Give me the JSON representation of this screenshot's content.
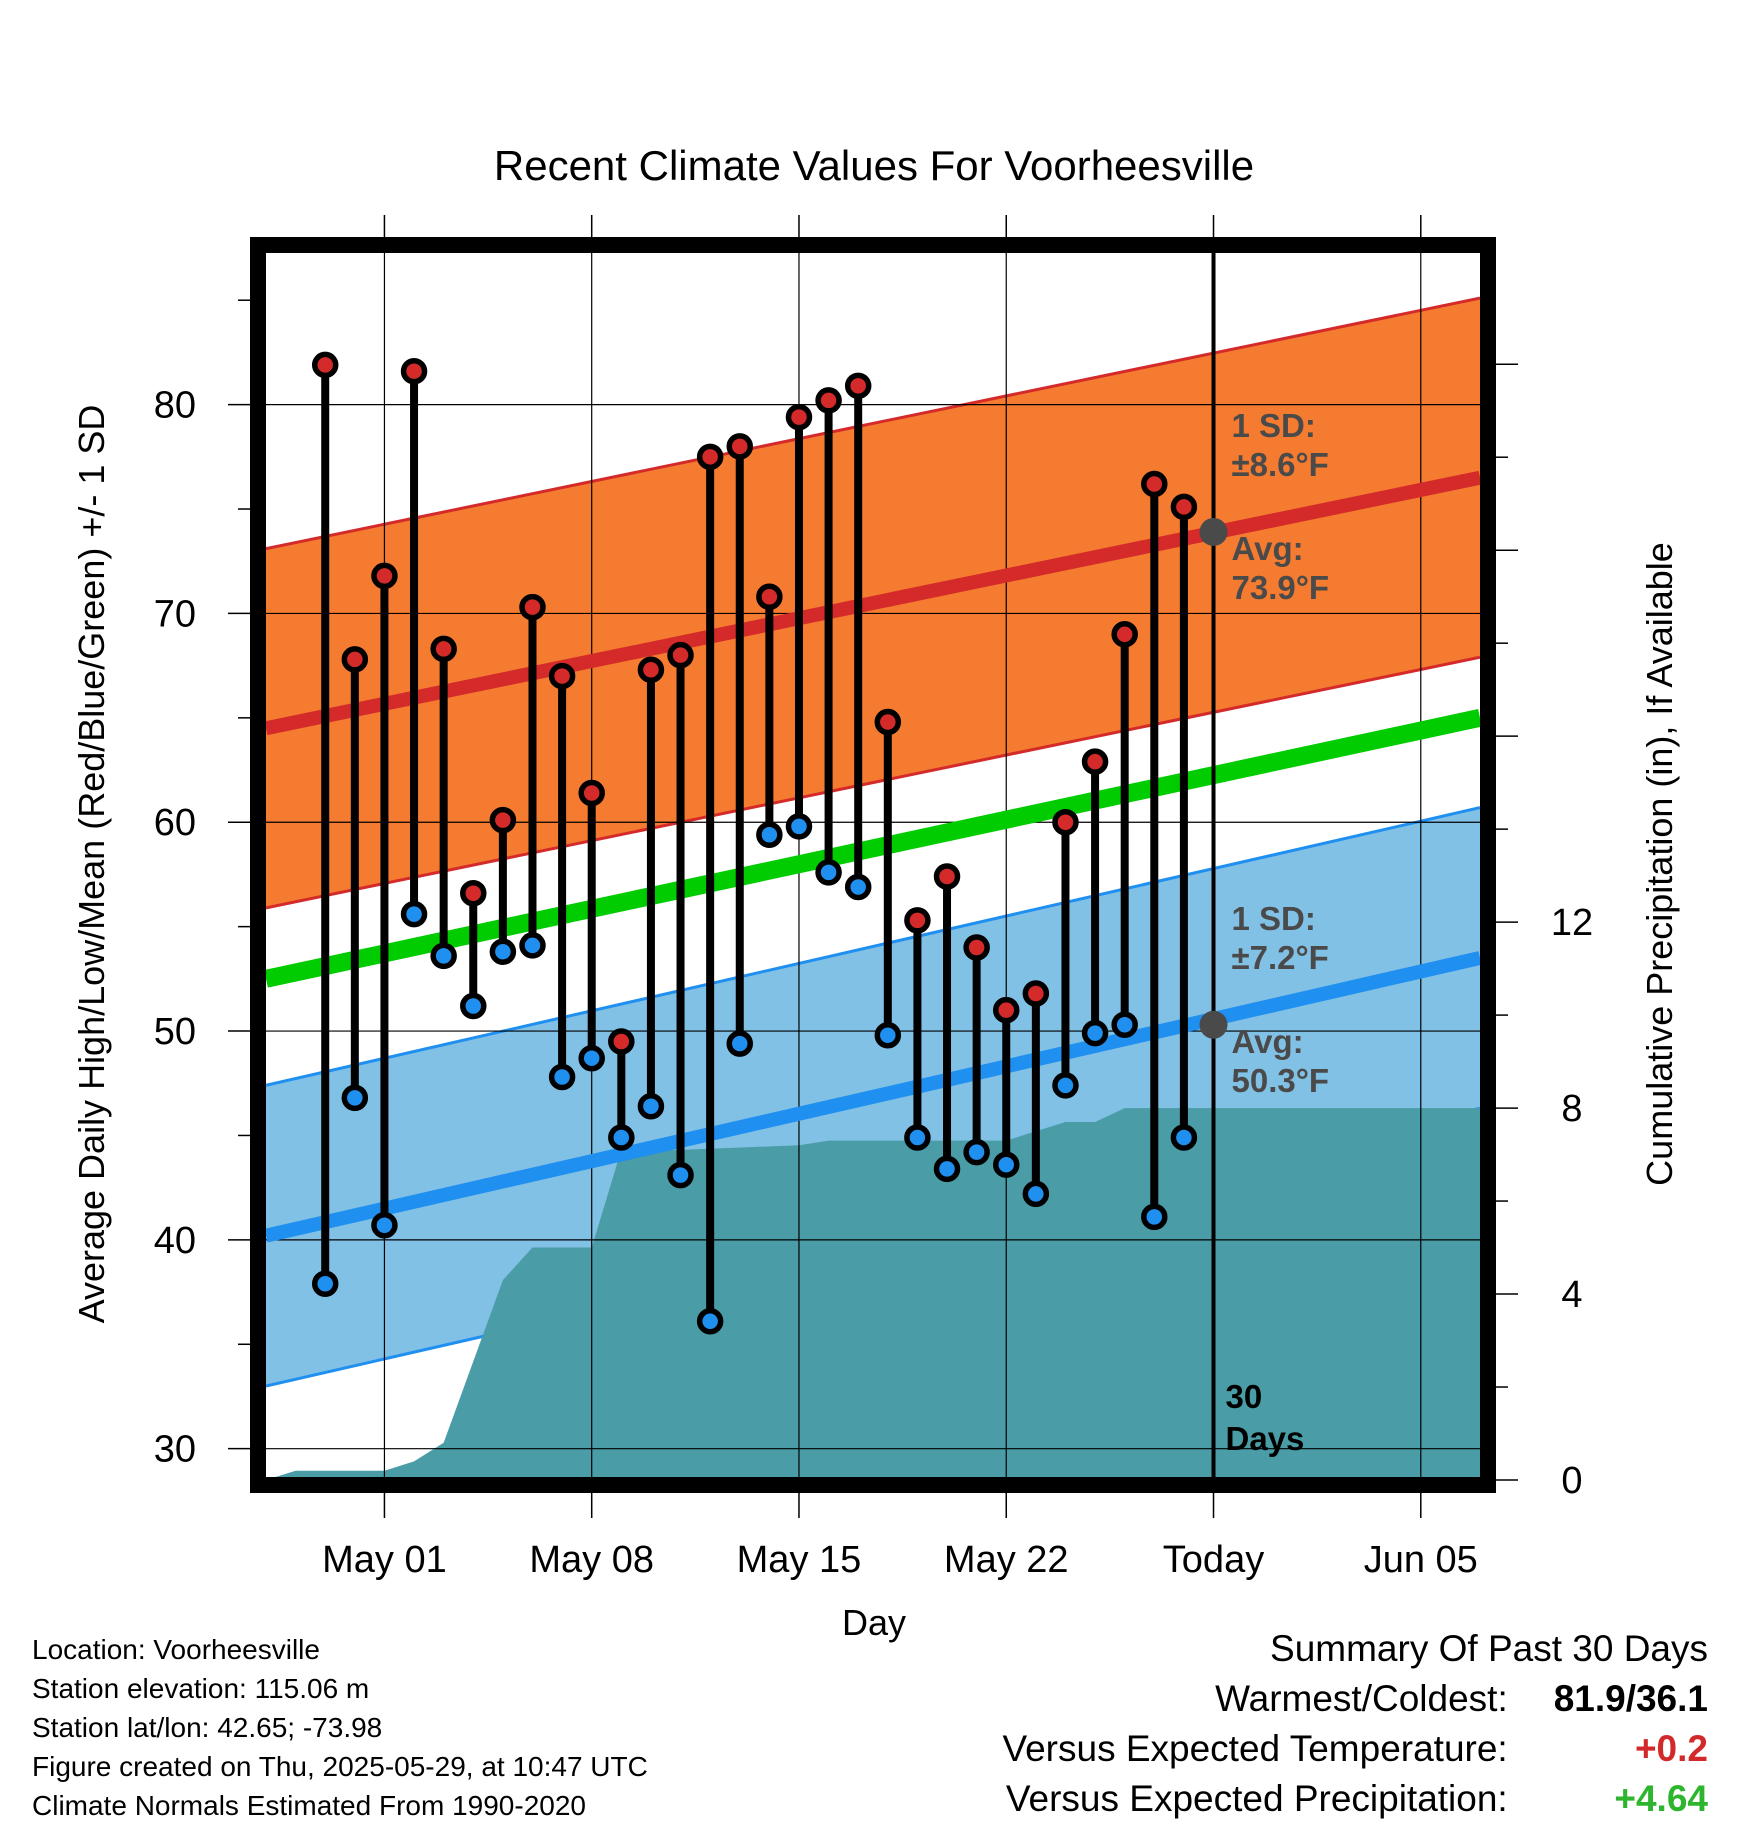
{
  "chart_data": {
    "type": "line",
    "title": "Recent Climate Values For Voorheesville",
    "xlabel": "Day",
    "ylabel": "Average Daily High/Low/Mean (Red/Blue/Green) +/- 1 SD",
    "y2label": "Cumulative Precipitation (in), If Available",
    "ylim": [
      28.5,
      87.5
    ],
    "y2lim": [
      0,
      26.5
    ],
    "yticks": [
      "30",
      "40",
      "50",
      "60",
      "70",
      "80"
    ],
    "y2ticks": [
      "0",
      "4",
      "8",
      "12"
    ],
    "xlim": [
      "2025-04-27",
      "2025-06-07"
    ],
    "xticks": [
      {
        "date": "2025-05-01",
        "label": "May 01"
      },
      {
        "date": "2025-05-08",
        "label": "May 08"
      },
      {
        "date": "2025-05-15",
        "label": "May 15"
      },
      {
        "date": "2025-05-22",
        "label": "May 22"
      },
      {
        "date": "2025-05-29",
        "label": "Today"
      },
      {
        "date": "2025-06-05",
        "label": "Jun 05"
      }
    ],
    "today": "2025-05-29",
    "grid": true,
    "colors": {
      "high_band": "#f47b30",
      "high_line": "#d42a2a",
      "low_band": "#82c1e6",
      "low_line": "#1f8ff0",
      "mean_line": "#00cc00",
      "precip": "#4a9ca6",
      "high_marker": "#d42a2a",
      "low_marker": "#1f8ff0"
    },
    "normal_high": {
      "start": 64.5,
      "end": 76.5,
      "sd": 8.6,
      "today_avg": 73.9
    },
    "normal_low": {
      "start": 40.2,
      "end": 53.5,
      "sd": 7.2,
      "today_avg": 50.3
    },
    "normal_mean": {
      "start": 52.5,
      "end": 65.0
    },
    "daily": [
      {
        "date": "2025-04-29",
        "high": 81.9,
        "low": 37.9
      },
      {
        "date": "2025-04-30",
        "high": 67.8,
        "low": 46.8
      },
      {
        "date": "2025-05-01",
        "high": 71.8,
        "low": 40.7
      },
      {
        "date": "2025-05-02",
        "high": 81.6,
        "low": 55.6
      },
      {
        "date": "2025-05-03",
        "high": 68.3,
        "low": 53.6
      },
      {
        "date": "2025-05-04",
        "high": 56.6,
        "low": 51.2
      },
      {
        "date": "2025-05-05",
        "high": 60.1,
        "low": 53.8
      },
      {
        "date": "2025-05-06",
        "high": 70.3,
        "low": 54.1
      },
      {
        "date": "2025-05-07",
        "high": 67.0,
        "low": 47.8
      },
      {
        "date": "2025-05-08",
        "high": 61.4,
        "low": 48.7
      },
      {
        "date": "2025-05-09",
        "high": 49.5,
        "low": 44.9
      },
      {
        "date": "2025-05-10",
        "high": 67.3,
        "low": 46.4
      },
      {
        "date": "2025-05-11",
        "high": 68.0,
        "low": 43.1
      },
      {
        "date": "2025-05-12",
        "high": 77.5,
        "low": 36.1
      },
      {
        "date": "2025-05-13",
        "high": 78.0,
        "low": 49.4
      },
      {
        "date": "2025-05-14",
        "high": 70.8,
        "low": 59.4
      },
      {
        "date": "2025-05-15",
        "high": 79.4,
        "low": 59.8
      },
      {
        "date": "2025-05-16",
        "high": 80.2,
        "low": 57.6
      },
      {
        "date": "2025-05-17",
        "high": 80.9,
        "low": 56.9
      },
      {
        "date": "2025-05-18",
        "high": 64.8,
        "low": 49.8
      },
      {
        "date": "2025-05-19",
        "high": 55.3,
        "low": 44.9
      },
      {
        "date": "2025-05-20",
        "high": 57.4,
        "low": 43.4
      },
      {
        "date": "2025-05-21",
        "high": 54.0,
        "low": 44.2
      },
      {
        "date": "2025-05-22",
        "high": 51.0,
        "low": 43.6
      },
      {
        "date": "2025-05-23",
        "high": 51.8,
        "low": 42.2
      },
      {
        "date": "2025-05-24",
        "high": 60.0,
        "low": 47.4
      },
      {
        "date": "2025-05-25",
        "high": 62.9,
        "low": 49.9
      },
      {
        "date": "2025-05-26",
        "high": 69.0,
        "low": 50.3
      },
      {
        "date": "2025-05-27",
        "high": 76.2,
        "low": 41.1
      },
      {
        "date": "2025-05-28",
        "high": 75.1,
        "low": 44.9
      }
    ],
    "precip_cumulative": [
      {
        "date": "2025-04-27",
        "value": 0.0
      },
      {
        "date": "2025-04-28",
        "value": 0.2
      },
      {
        "date": "2025-04-30",
        "value": 0.2
      },
      {
        "date": "2025-05-01",
        "value": 0.2
      },
      {
        "date": "2025-05-02",
        "value": 0.4
      },
      {
        "date": "2025-05-03",
        "value": 0.8
      },
      {
        "date": "2025-05-05",
        "value": 4.3
      },
      {
        "date": "2025-05-06",
        "value": 5.0
      },
      {
        "date": "2025-05-08",
        "value": 5.0
      },
      {
        "date": "2025-05-09",
        "value": 7.1
      },
      {
        "date": "2025-05-11",
        "value": 7.1
      },
      {
        "date": "2025-05-15",
        "value": 7.2
      },
      {
        "date": "2025-05-16",
        "value": 7.3
      },
      {
        "date": "2025-05-22",
        "value": 7.3
      },
      {
        "date": "2025-05-24",
        "value": 7.7
      },
      {
        "date": "2025-05-25",
        "value": 7.7
      },
      {
        "date": "2025-05-26",
        "value": 8.0
      },
      {
        "date": "2025-06-07",
        "value": 8.0
      }
    ],
    "annotations": {
      "high_sd_label": "1 SD:",
      "high_sd_value": "±8.6°F",
      "high_avg_label": "Avg:",
      "high_avg_value": "73.9°F",
      "low_sd_label": "1 SD:",
      "low_sd_value": "±7.2°F",
      "low_avg_label": "Avg:",
      "low_avg_value": "50.3°F",
      "period_number": "30",
      "period_unit": "Days"
    }
  },
  "info": {
    "location": "Location: Voorheesville",
    "elevation": "Station elevation: 115.06 m",
    "latlon": "Station lat/lon: 42.65; -73.98",
    "created": "Figure created on Thu, 2025-05-29, at 10:47 UTC",
    "normals": "Climate Normals Estimated From 1990-2020"
  },
  "summary": {
    "title": "Summary Of Past 30 Days",
    "warmest_coldest_label": "Warmest/Coldest:",
    "warmest_coldest_value": "81.9/36.1",
    "temp_label": "Versus Expected Temperature:",
    "temp_value": "+0.2",
    "temp_color": "#d22a2a",
    "precip_label": "Versus Expected Precipitation:",
    "precip_value": "+4.64",
    "precip_color": "#2db52d"
  }
}
